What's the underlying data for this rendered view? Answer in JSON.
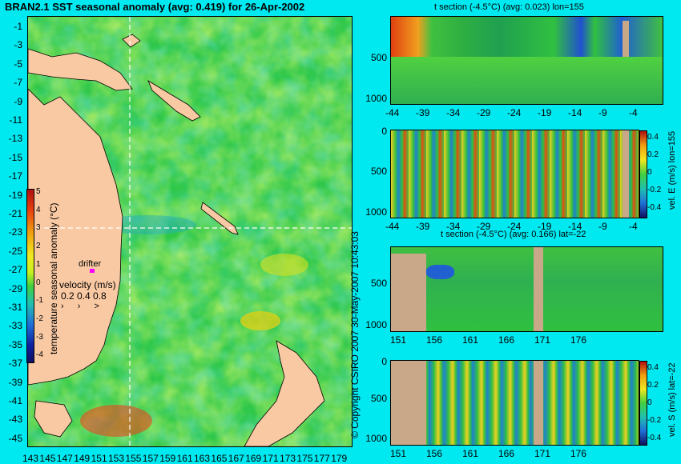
{
  "title": "BRAN2.1 SST seasonal anomaly (avg: 0.419) for 26-Apr-2002",
  "map": {
    "y_ticks": [
      "-1",
      "-3",
      "-5",
      "-7",
      "-9",
      "-11",
      "-13",
      "-15",
      "-17",
      "-19",
      "-21",
      "-23",
      "-25",
      "-27",
      "-29",
      "-31",
      "-33",
      "-35",
      "-37",
      "-39",
      "-41",
      "-43",
      "-45"
    ],
    "x_ticks": [
      "143",
      "145",
      "147",
      "149",
      "151",
      "153",
      "155",
      "157",
      "159",
      "161",
      "163",
      "165",
      "167",
      "169",
      "171",
      "173",
      "175",
      "177",
      "179"
    ],
    "colorbar_label": "temperature seasonal anomaly (°C)",
    "colorbar_ticks": [
      "5",
      "4",
      "3",
      "2",
      "1",
      "0",
      "-1",
      "-2",
      "-3",
      "-4"
    ],
    "drifter_label": "drifter",
    "velocity_label": "velocity (m/s)",
    "velocity_values": "0.2 0.4 0.8",
    "colors": {
      "land": "#f9c9a3",
      "ocean": "#2fc84a",
      "crosshair": "#ffffff"
    }
  },
  "copyright": "© Copyright CSIRO 2007  30-May-2007 10:43:03",
  "sections": [
    {
      "title": "t section (-4.5°C) (avg: 0.023) lon=155",
      "y_ticks": [
        "500",
        "1000"
      ],
      "x_ticks": [
        "-44",
        "-39",
        "-34",
        "-29",
        "-24",
        "-19",
        "-14",
        "-9",
        "-4"
      ]
    },
    {
      "title": "",
      "y_ticks": [
        "0",
        "500",
        "1000"
      ],
      "x_ticks": [
        "-44",
        "-39",
        "-34",
        "-29",
        "-24",
        "-19",
        "-14",
        "-9",
        "-4"
      ],
      "colorbar_label": "vel. E (m/s) lon=155",
      "colorbar_ticks": [
        "0.4",
        "0.2",
        "0",
        "-0.2",
        "-0.4"
      ]
    },
    {
      "title": "t section (-4.5°C) (avg: 0.166) lat=-22",
      "y_ticks": [
        "500",
        "1000"
      ],
      "x_ticks": [
        "151",
        "156",
        "161",
        "166",
        "171",
        "176"
      ]
    },
    {
      "title": "",
      "y_ticks": [
        "0",
        "500",
        "1000"
      ],
      "x_ticks": [
        "151",
        "156",
        "161",
        "166",
        "171",
        "176"
      ],
      "colorbar_label": "vel. S (m/s) lat=-22",
      "colorbar_ticks": [
        "0.4",
        "0.2",
        "0",
        "-0.2",
        "-0.4"
      ]
    }
  ]
}
